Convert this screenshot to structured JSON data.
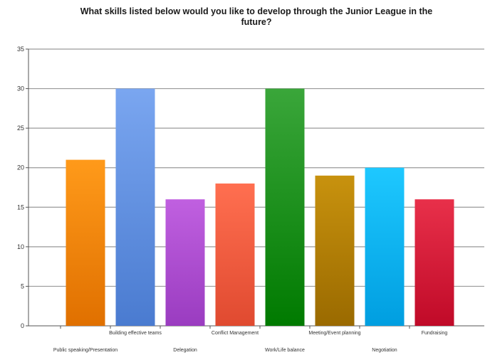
{
  "chart_data": {
    "type": "bar",
    "title_lines": [
      "What skills listed below would you like to develop through the Junior League in the",
      "future?"
    ],
    "xlabel": "",
    "ylabel": "",
    "ylim": [
      0,
      35
    ],
    "yticks": [
      0,
      5,
      10,
      15,
      20,
      25,
      30,
      35
    ],
    "grid": true,
    "legend": "none",
    "categories": [
      "Public speaking/Presentation",
      "Building effective teams",
      "Delegation",
      "Conflict Management",
      "Work/Life balance",
      "Meeting/Event planning",
      "Negotiation",
      "Fundraising"
    ],
    "values": [
      21,
      30,
      16,
      18,
      30,
      19,
      20,
      16
    ],
    "colors": [
      [
        "#ff9a1a",
        "#e07000"
      ],
      [
        "#7aa6f0",
        "#4a7bd0"
      ],
      [
        "#c060e0",
        "#9a3cc0"
      ],
      [
        "#ff6f50",
        "#e04a30"
      ],
      [
        "#3aa63a",
        "#007a00"
      ],
      [
        "#c8920e",
        "#9a6a00"
      ],
      [
        "#1ec8ff",
        "#009ee0"
      ],
      [
        "#e8304a",
        "#c00a28"
      ]
    ]
  }
}
